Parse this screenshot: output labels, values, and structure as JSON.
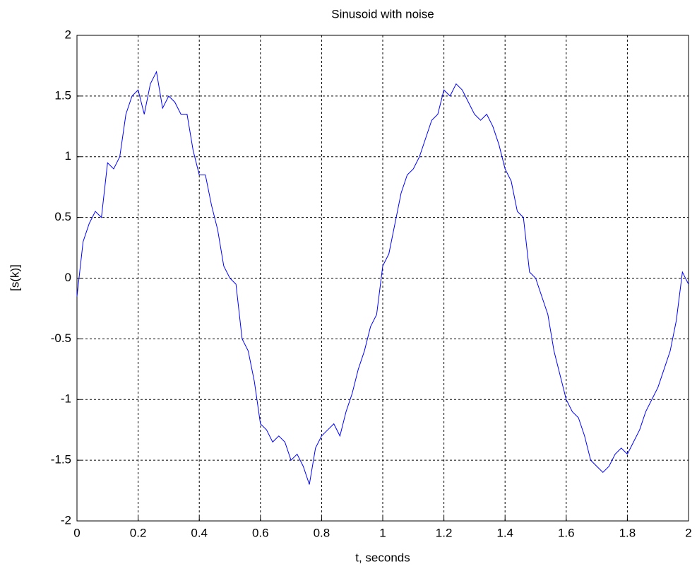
{
  "chart_data": {
    "type": "line",
    "title": "Sinusoid with noise",
    "x_label": "t, seconds",
    "y_label": "[s(k)]",
    "x": [
      0,
      0.02,
      0.04,
      0.06,
      0.08,
      0.1,
      0.12,
      0.14,
      0.16,
      0.18,
      0.2,
      0.22,
      0.24,
      0.26,
      0.28,
      0.3,
      0.32,
      0.34,
      0.36,
      0.38,
      0.4,
      0.42,
      0.44,
      0.46,
      0.48,
      0.5,
      0.52,
      0.54,
      0.56,
      0.58,
      0.6,
      0.62,
      0.64,
      0.66,
      0.68,
      0.7,
      0.72,
      0.74,
      0.76,
      0.78,
      0.8,
      0.82,
      0.84,
      0.86,
      0.88,
      0.9,
      0.92,
      0.94,
      0.96,
      0.98,
      1,
      1.02,
      1.04,
      1.06,
      1.08,
      1.1,
      1.12,
      1.14,
      1.16,
      1.18,
      1.2,
      1.22,
      1.24,
      1.26,
      1.28,
      1.3,
      1.32,
      1.34,
      1.36,
      1.38,
      1.4,
      1.42,
      1.44,
      1.46,
      1.48,
      1.5,
      1.52,
      1.54,
      1.56,
      1.58,
      1.6,
      1.62,
      1.64,
      1.66,
      1.68,
      1.7,
      1.72,
      1.74,
      1.76,
      1.78,
      1.8,
      1.82,
      1.84,
      1.86,
      1.88,
      1.9,
      1.92,
      1.94,
      1.96,
      1.98,
      2
    ],
    "series": [
      {
        "color": "#0000ff",
        "values": [
          -0.15,
          0.3,
          0.45,
          0.55,
          0.5,
          0.95,
          0.9,
          1.0,
          1.35,
          1.5,
          1.55,
          1.35,
          1.6,
          1.7,
          1.4,
          1.5,
          1.45,
          1.35,
          1.35,
          1.05,
          0.85,
          0.85,
          0.6,
          0.4,
          0.1,
          0.0,
          -0.05,
          -0.5,
          -0.6,
          -0.85,
          -1.2,
          -1.25,
          -1.35,
          -1.3,
          -1.35,
          -1.5,
          -1.45,
          -1.55,
          -1.7,
          -1.4,
          -1.3,
          -1.25,
          -1.2,
          -1.3,
          -1.1,
          -0.95,
          -0.75,
          -0.6,
          -0.4,
          -0.3,
          0.1,
          0.2,
          0.45,
          0.7,
          0.85,
          0.9,
          1.0,
          1.15,
          1.3,
          1.35,
          1.55,
          1.5,
          1.6,
          1.55,
          1.45,
          1.35,
          1.3,
          1.35,
          1.25,
          1.1,
          0.9,
          0.8,
          0.55,
          0.5,
          0.05,
          0.0,
          -0.15,
          -0.3,
          -0.6,
          -0.8,
          -1.0,
          -1.1,
          -1.15,
          -1.3,
          -1.5,
          -1.55,
          -1.6,
          -1.55,
          -1.45,
          -1.4,
          -1.45,
          -1.35,
          -1.25,
          -1.1,
          -1.0,
          -0.9,
          -0.75,
          -0.6,
          -0.35,
          0.05,
          -0.05
        ]
      }
    ],
    "xlim": [
      0,
      2
    ],
    "xticks": [
      0,
      0.2,
      0.4,
      0.6,
      0.8,
      1,
      1.2,
      1.4,
      1.6,
      1.8,
      2
    ],
    "ylim": [
      -2,
      2
    ],
    "yticks": [
      -2,
      -1.5,
      -1,
      -0.5,
      0,
      0.5,
      1,
      1.5,
      2
    ],
    "grid": true
  }
}
